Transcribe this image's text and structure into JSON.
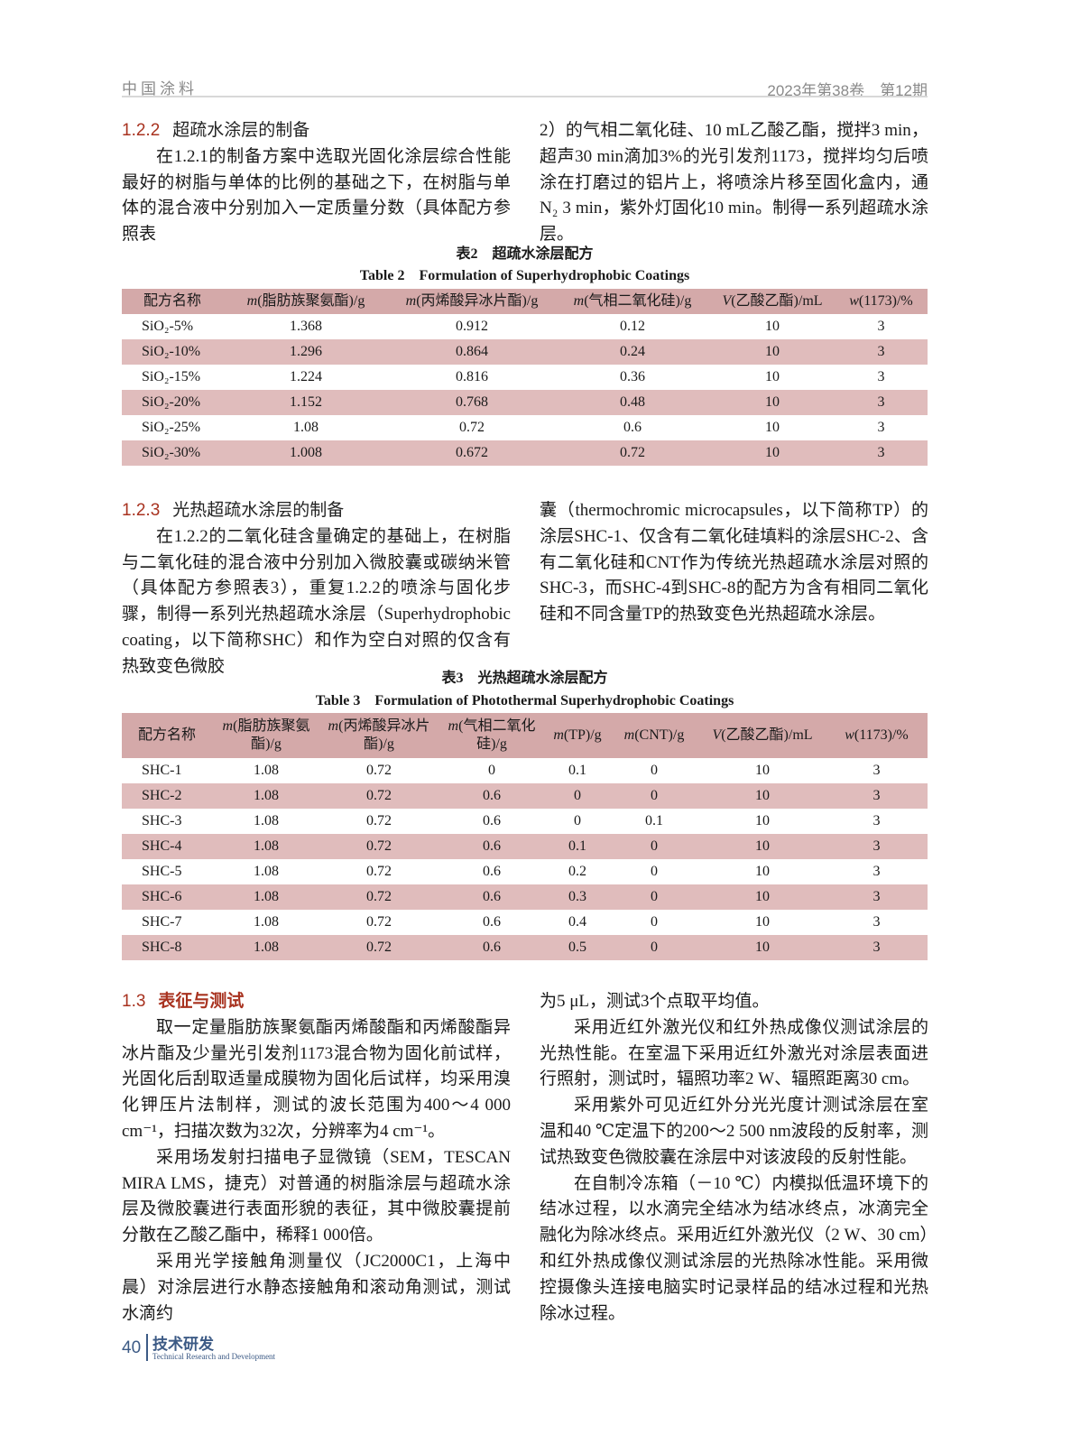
{
  "header": {
    "journal": "中国涂料",
    "issue": "2023年第38卷　第12期"
  },
  "colors": {
    "accent": "#a8321f",
    "table_header": "#d4a9a9",
    "table_alt_row": "#e0bcbc",
    "footer": "#3c5a85"
  },
  "sec122": {
    "num": "1.2.2",
    "title": "超疏水涂层的制备",
    "left_para": "在1.2.1的制备方案中选取光固化涂层综合性能最好的树脂与单体的比例的基础之下，在树脂与单体的混合液中分别加入一定质量分数（具体配方参照表",
    "right_para": "2）的气相二氧化硅、10 mL乙酸乙酯，搅拌3 min，超声30 min滴加3%的光引发剂1173，搅拌均匀后喷涂在打磨过的铝片上，将喷涂片移至固化盒内，通N₂ 3 min，紫外灯固化10 min。制得一系列超疏水涂层。"
  },
  "table2": {
    "caption_cn": "表2　超疏水涂层配方",
    "caption_en": "Table 2　Formulation of Superhydrophobic Coatings",
    "headers": [
      {
        "var": "",
        "text": "配方名称"
      },
      {
        "var": "m",
        "text": "(脂肪族聚氨酯)/g"
      },
      {
        "var": "m",
        "text": "(丙烯酸异冰片酯)/g"
      },
      {
        "var": "m",
        "text": "(气相二氧化硅)/g"
      },
      {
        "var": "V",
        "text": "(乙酸乙酯)/mL"
      },
      {
        "var": "w",
        "text": "(1173)/%"
      }
    ],
    "rows": [
      [
        "SiO₂-5%",
        "1.368",
        "0.912",
        "0.12",
        "10",
        "3"
      ],
      [
        "SiO₂-10%",
        "1.296",
        "0.864",
        "0.24",
        "10",
        "3"
      ],
      [
        "SiO₂-15%",
        "1.224",
        "0.816",
        "0.36",
        "10",
        "3"
      ],
      [
        "SiO₂-20%",
        "1.152",
        "0.768",
        "0.48",
        "10",
        "3"
      ],
      [
        "SiO₂-25%",
        "1.08",
        "0.72",
        "0.6",
        "10",
        "3"
      ],
      [
        "SiO₂-30%",
        "1.008",
        "0.672",
        "0.72",
        "10",
        "3"
      ]
    ]
  },
  "sec123": {
    "num": "1.2.3",
    "title": "光热超疏水涂层的制备",
    "left_para": "在1.2.2的二氧化硅含量确定的基础上，在树脂与二氧化硅的混合液中分别加入微胶囊或碳纳米管（具体配方参照表3），重复1.2.2的喷涂与固化步骤，制得一系列光热超疏水涂层（Superhydrophobic coating，以下简称SHC）和作为空白对照的仅含有热致变色微胶",
    "right_para": "囊（thermochromic microcapsules，以下简称TP）的涂层SHC-1、仅含有二氧化硅填料的涂层SHC-2、含有二氧化硅和CNT作为传统光热超疏水涂层对照的SHC-3，而SHC-4到SHC-8的配方为含有相同二氧化硅和不同含量TP的热致变色光热超疏水涂层。"
  },
  "table3": {
    "caption_cn": "表3　光热超疏水涂层配方",
    "caption_en": "Table 3　Formulation of Photothermal Superhydrophobic Coatings",
    "headers": [
      {
        "var": "",
        "text": "配方名称"
      },
      {
        "var": "m",
        "text": "(脂肪族聚氨酯)/g"
      },
      {
        "var": "m",
        "text": "(丙烯酸异冰片酯)/g"
      },
      {
        "var": "m",
        "text": "(气相二氧化硅)/g"
      },
      {
        "var": "m",
        "text": "(TP)/g"
      },
      {
        "var": "m",
        "text": "(CNT)/g"
      },
      {
        "var": "V",
        "text": "(乙酸乙酯)/mL"
      },
      {
        "var": "w",
        "text": "(1173)/%"
      }
    ],
    "rows": [
      [
        "SHC-1",
        "1.08",
        "0.72",
        "0",
        "0.1",
        "0",
        "10",
        "3"
      ],
      [
        "SHC-2",
        "1.08",
        "0.72",
        "0.6",
        "0",
        "0",
        "10",
        "3"
      ],
      [
        "SHC-3",
        "1.08",
        "0.72",
        "0.6",
        "0",
        "0.1",
        "10",
        "3"
      ],
      [
        "SHC-4",
        "1.08",
        "0.72",
        "0.6",
        "0.1",
        "0",
        "10",
        "3"
      ],
      [
        "SHC-5",
        "1.08",
        "0.72",
        "0.6",
        "0.2",
        "0",
        "10",
        "3"
      ],
      [
        "SHC-6",
        "1.08",
        "0.72",
        "0.6",
        "0.3",
        "0",
        "10",
        "3"
      ],
      [
        "SHC-7",
        "1.08",
        "0.72",
        "0.6",
        "0.4",
        "0",
        "10",
        "3"
      ],
      [
        "SHC-8",
        "1.08",
        "0.72",
        "0.6",
        "0.5",
        "0",
        "10",
        "3"
      ]
    ]
  },
  "sec13": {
    "num": "1.3",
    "title": "表征与测试",
    "left_paras": [
      "取一定量脂肪族聚氨酯丙烯酸酯和丙烯酸酯异冰片酯及少量光引发剂1173混合物为固化前试样，光固化后刮取适量成膜物为固化后试样，均采用溴化钾压片法制样，测试的波长范围为400～4 000 cm⁻¹，扫描次数为32次，分辨率为4 cm⁻¹。",
      "采用场发射扫描电子显微镜（SEM，TESCAN MIRA LMS，捷克）对普通的树脂涂层与超疏水涂层及微胶囊进行表面形貌的表征，其中微胶囊提前分散在乙酸乙酯中，稀释1 000倍。",
      "采用光学接触角测量仪（JC2000C1，上海中晨）对涂层进行水静态接触角和滚动角测试，测试水滴约"
    ],
    "right_cont": "为5 μL，测试3个点取平均值。",
    "right_paras": [
      "采用近红外激光仪和红外热成像仪测试涂层的光热性能。在室温下采用近红外激光对涂层表面进行照射，测试时，辐照功率2 W、辐照距离30 cm。",
      "采用紫外可见近红外分光光度计测试涂层在室温和40 ℃定温下的200～2 500 nm波段的反射率，测试热致变色微胶囊在涂层中对该波段的反射性能。",
      "在自制冷冻箱（－10 ℃）内模拟低温环境下的结冰过程，以水滴完全结冰为结冰终点，冰滴完全融化为除冰终点。采用近红外激光仪（2 W、30 cm）和红外热成像仪测试涂层的光热除冰性能。采用微控摄像头连接电脑实时记录样品的结冰过程和光热除冰过程。"
    ]
  },
  "footer": {
    "page": "40",
    "section_cn": "技术研发",
    "section_en": "Technical Research and Development"
  }
}
